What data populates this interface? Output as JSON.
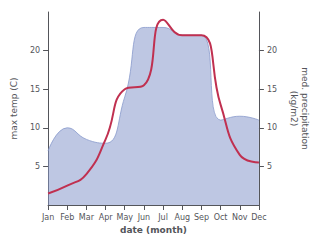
{
  "chart_data": {
    "type": "line",
    "xlabel": "date (month)",
    "ylabel": "max temp (C)",
    "y2label": "med. precipitation\n(kg/m2)",
    "categories": [
      "Jan",
      "Feb",
      "Mar",
      "Apr",
      "May",
      "Jun",
      "Jul",
      "Aug",
      "Sep",
      "Oct",
      "Nov",
      "Dec"
    ],
    "series": [
      {
        "type": "area",
        "axis": "y2",
        "color": "#8899cc",
        "values": [
          7.0,
          10.0,
          8.5,
          8.0,
          14.0,
          23.0,
          23.0,
          22.0,
          22.0,
          11.0,
          11.5,
          11.0
        ]
      },
      {
        "type": "line",
        "axis": "y",
        "color": "#c03050",
        "values": [
          1.5,
          2.5,
          4.0,
          8.5,
          15.0,
          15.5,
          24.0,
          22.0,
          22.0,
          13.0,
          6.5,
          5.5
        ]
      }
    ],
    "ylim": [
      0,
      25
    ],
    "yticks": [
      5,
      10,
      15,
      20
    ],
    "y2lim": [
      0,
      25
    ],
    "y2ticks": [
      5,
      10,
      15,
      20
    ],
    "grid": false
  }
}
